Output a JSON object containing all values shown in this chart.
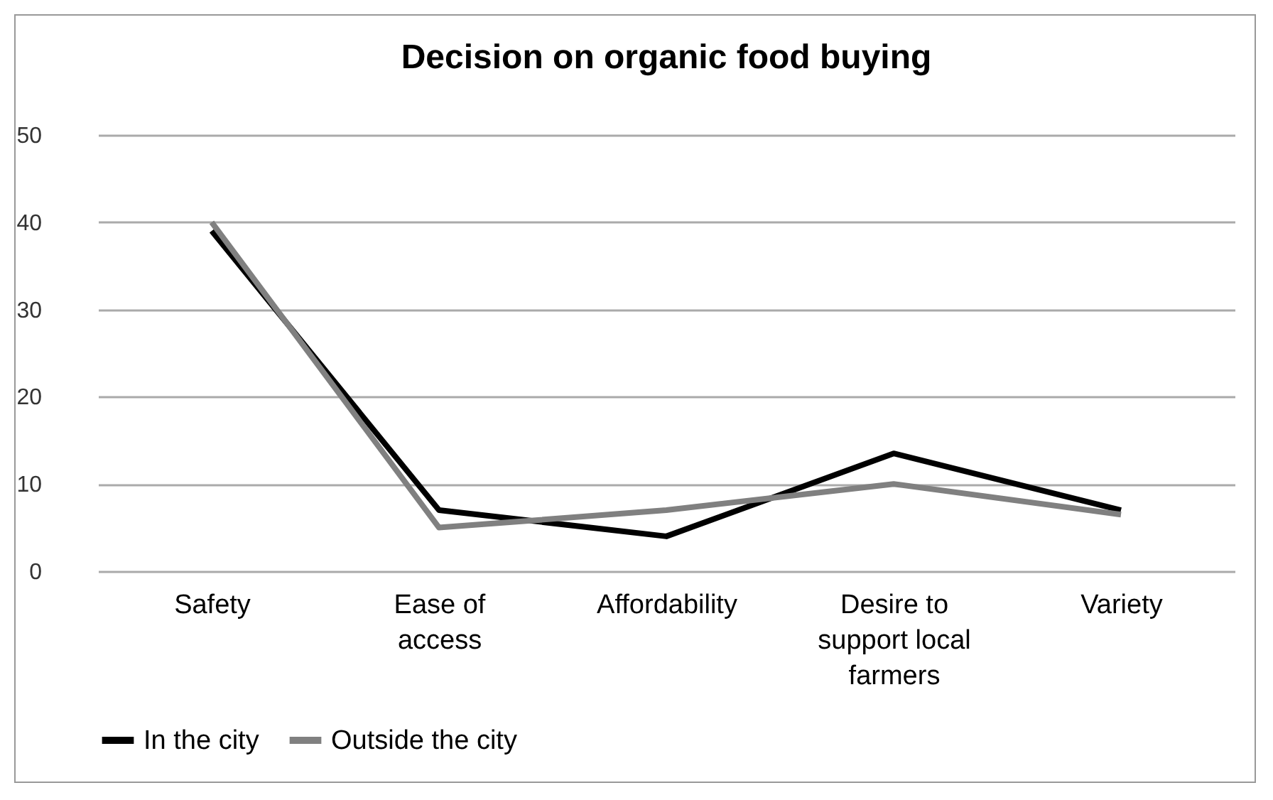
{
  "chart_data": {
    "type": "line",
    "title": "Decision on organic food buying",
    "categories": [
      "Safety",
      "Ease of access",
      "Affordability",
      "Desire to support local farmers",
      "Variety"
    ],
    "series": [
      {
        "name": "In the city",
        "color": "#000000",
        "values": [
          39,
          7,
          4,
          13.5,
          7
        ]
      },
      {
        "name": "Outside the city",
        "color": "#808080",
        "values": [
          40,
          5,
          7,
          10,
          6.5
        ]
      }
    ],
    "ylim": [
      0,
      50
    ],
    "yticks": [
      0,
      10,
      20,
      30,
      40,
      50
    ],
    "grid": "y",
    "legend": "bottom",
    "marker": "none",
    "line_style": "solid"
  }
}
